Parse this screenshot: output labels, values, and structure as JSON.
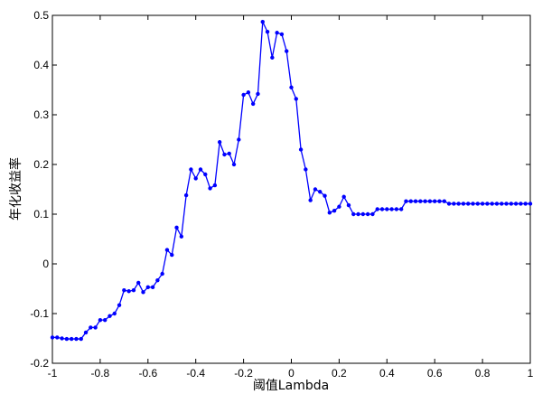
{
  "chart_data": {
    "type": "line",
    "title": "",
    "xlabel": "阈值Lambda",
    "ylabel": "年化收益率",
    "xlim": [
      -1,
      1
    ],
    "ylim": [
      -0.2,
      0.5
    ],
    "grid": false,
    "legend": "none",
    "x_ticks": [
      -1,
      -0.8,
      -0.6,
      -0.4,
      -0.2,
      0,
      0.2,
      0.4,
      0.6,
      0.8,
      1
    ],
    "x_tick_labels": [
      "-1",
      "-0.8",
      "-0.6",
      "-0.4",
      "-0.2",
      "0",
      "0.2",
      "0.4",
      "0.6",
      "0.8",
      "1"
    ],
    "y_ticks": [
      -0.2,
      -0.1,
      0,
      0.1,
      0.2,
      0.3,
      0.4,
      0.5
    ],
    "y_tick_labels": [
      "-0.2",
      "-0.1",
      "0",
      "0.1",
      "0.2",
      "0.3",
      "0.4",
      "0.5"
    ],
    "series": [
      {
        "color": "#0000ff",
        "marker": "dot",
        "x": [
          -1,
          -0.98,
          -0.96,
          -0.94,
          -0.92,
          -0.9,
          -0.88,
          -0.86,
          -0.84,
          -0.82,
          -0.8,
          -0.78,
          -0.76,
          -0.74,
          -0.72,
          -0.7,
          -0.68,
          -0.66,
          -0.64,
          -0.62,
          -0.6,
          -0.58,
          -0.56,
          -0.54,
          -0.52,
          -0.5,
          -0.48,
          -0.46,
          -0.44,
          -0.42,
          -0.4,
          -0.38,
          -0.36,
          -0.34,
          -0.32,
          -0.3,
          -0.28,
          -0.26,
          -0.24,
          -0.22,
          -0.2,
          -0.18,
          -0.16,
          -0.14,
          -0.12,
          -0.1,
          -0.08,
          -0.06,
          -0.04,
          -0.02,
          0,
          0.02,
          0.04,
          0.06,
          0.08,
          0.1,
          0.12,
          0.14,
          0.16,
          0.18,
          0.2,
          0.22,
          0.24,
          0.26,
          0.28,
          0.3,
          0.32,
          0.34,
          0.36,
          0.38,
          0.4,
          0.42,
          0.44,
          0.46,
          0.48,
          0.5,
          0.52,
          0.54,
          0.56,
          0.58,
          0.6,
          0.62,
          0.64,
          0.66,
          0.68,
          0.7,
          0.72,
          0.74,
          0.76,
          0.78,
          0.8,
          0.82,
          0.84,
          0.86,
          0.88,
          0.9,
          0.92,
          0.94,
          0.96,
          0.98,
          1
        ],
        "y": [
          -0.148,
          -0.148,
          -0.15,
          -0.151,
          -0.151,
          -0.151,
          -0.151,
          -0.138,
          -0.128,
          -0.128,
          -0.113,
          -0.113,
          -0.105,
          -0.1,
          -0.083,
          -0.053,
          -0.055,
          -0.053,
          -0.038,
          -0.057,
          -0.047,
          -0.047,
          -0.033,
          -0.02,
          0.028,
          0.018,
          0.073,
          0.055,
          0.138,
          0.19,
          0.172,
          0.19,
          0.18,
          0.152,
          0.158,
          0.245,
          0.22,
          0.222,
          0.2,
          0.25,
          0.34,
          0.345,
          0.322,
          0.342,
          0.487,
          0.467,
          0.415,
          0.465,
          0.462,
          0.428,
          0.355,
          0.332,
          0.23,
          0.19,
          0.128,
          0.15,
          0.145,
          0.137,
          0.103,
          0.107,
          0.115,
          0.135,
          0.118,
          0.1,
          0.1,
          0.1,
          0.1,
          0.1,
          0.11,
          0.11,
          0.11,
          0.11,
          0.11,
          0.11,
          0.126,
          0.126,
          0.126,
          0.126,
          0.126,
          0.126,
          0.126,
          0.126,
          0.126,
          0.121,
          0.121,
          0.121,
          0.121,
          0.121,
          0.121,
          0.121,
          0.121,
          0.121,
          0.121,
          0.121,
          0.121,
          0.121,
          0.121,
          0.121,
          0.121,
          0.121,
          0.121
        ]
      }
    ]
  }
}
